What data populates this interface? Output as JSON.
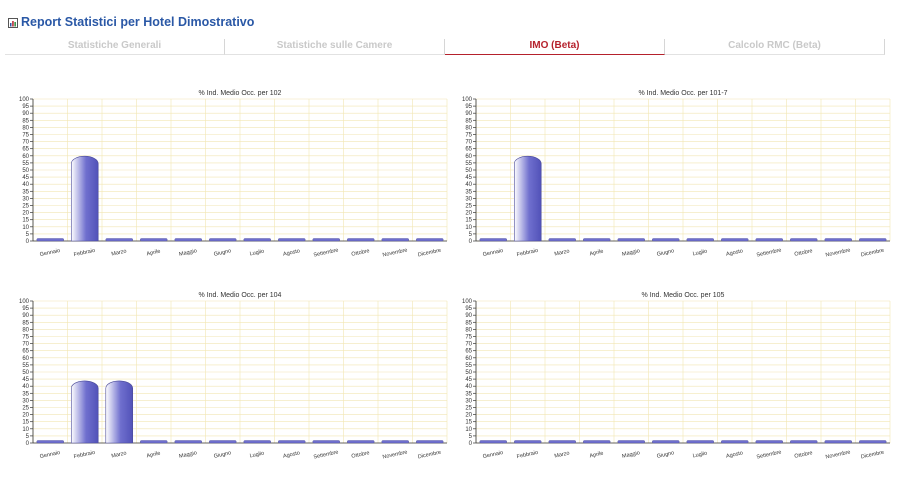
{
  "page": {
    "title": "Report Statistici per Hotel Dimostrativo",
    "icon": "report-icon"
  },
  "tabs": [
    {
      "label": "Statistiche Generali",
      "active": false
    },
    {
      "label": "Statistiche sulle Camere",
      "active": false
    },
    {
      "label": "IMO (Beta)",
      "active": true
    },
    {
      "label": "Calcolo RMC (Beta)",
      "active": false
    }
  ],
  "chart_data": [
    {
      "type": "bar",
      "title": "% Ind. Medio Occ. per 102",
      "categories": [
        "Gennaio",
        "Febbraio",
        "Marzo",
        "Aprile",
        "Maggio",
        "Giugno",
        "Luglio",
        "Agosto",
        "Settembre",
        "Ottobre",
        "Novembre",
        "Dicembre"
      ],
      "values": [
        0,
        64,
        0,
        0,
        0,
        0,
        0,
        0,
        0,
        0,
        0,
        0
      ],
      "ylim": [
        0,
        100
      ],
      "yticks": [
        0,
        5,
        10,
        15,
        20,
        25,
        30,
        35,
        40,
        45,
        50,
        55,
        60,
        65,
        70,
        75,
        80,
        85,
        90,
        95,
        100
      ],
      "grid": true
    },
    {
      "type": "bar",
      "title": "% Ind. Medio Occ. per 101-7",
      "categories": [
        "Gennaio",
        "Febbraio",
        "Marzo",
        "Aprile",
        "Maggio",
        "Giugno",
        "Luglio",
        "Agosto",
        "Settembre",
        "Ottobre",
        "Novembre",
        "Dicembre"
      ],
      "values": [
        0,
        64,
        0,
        0,
        0,
        0,
        0,
        0,
        0,
        0,
        0,
        0
      ],
      "ylim": [
        0,
        100
      ],
      "yticks": [
        0,
        5,
        10,
        15,
        20,
        25,
        30,
        35,
        40,
        45,
        50,
        55,
        60,
        65,
        70,
        75,
        80,
        85,
        90,
        95,
        100
      ],
      "grid": true
    },
    {
      "type": "bar",
      "title": "% Ind. Medio Occ. per 104",
      "categories": [
        "Gennaio",
        "Febbraio",
        "Marzo",
        "Aprile",
        "Maggio",
        "Giugno",
        "Luglio",
        "Agosto",
        "Settembre",
        "Ottobre",
        "Novembre",
        "Dicembre"
      ],
      "values": [
        0,
        48,
        48,
        0,
        0,
        0,
        0,
        0,
        0,
        0,
        0,
        0
      ],
      "ylim": [
        0,
        100
      ],
      "yticks": [
        0,
        5,
        10,
        15,
        20,
        25,
        30,
        35,
        40,
        45,
        50,
        55,
        60,
        65,
        70,
        75,
        80,
        85,
        90,
        95,
        100
      ],
      "grid": true
    },
    {
      "type": "bar",
      "title": "% Ind. Medio Occ. per 105",
      "categories": [
        "Gennaio",
        "Febbraio",
        "Marzo",
        "Aprile",
        "Maggio",
        "Giugno",
        "Luglio",
        "Agosto",
        "Settembre",
        "Ottobre",
        "Novembre",
        "Dicembre"
      ],
      "values": [
        0,
        0,
        0,
        0,
        0,
        0,
        0,
        0,
        0,
        0,
        0,
        0
      ],
      "ylim": [
        0,
        100
      ],
      "yticks": [
        0,
        5,
        10,
        15,
        20,
        25,
        30,
        35,
        40,
        45,
        50,
        55,
        60,
        65,
        70,
        75,
        80,
        85,
        90,
        95,
        100
      ],
      "grid": true
    }
  ],
  "colors": {
    "title": "#2a58a6",
    "tab_active": "#b5212c",
    "tab_inactive": "#c9c9c9",
    "grid": "#f2e6b3",
    "bar": "#6f6fce",
    "axis": "#333333"
  }
}
